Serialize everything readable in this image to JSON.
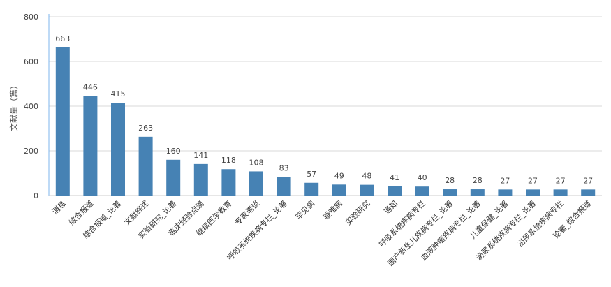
{
  "chart_data": {
    "type": "bar",
    "title": "",
    "xlabel": "",
    "ylabel": "文献量（篇）",
    "ylim": [
      0,
      800
    ],
    "yticks": [
      0,
      200,
      400,
      600,
      800
    ],
    "grid": true,
    "bar_color": "#4682b4",
    "categories": [
      "消息",
      "综合报道",
      "综合报道_论著",
      "文献综述",
      "实验研究_论著",
      "临床经验点滴",
      "继续医学教育",
      "专家笔谈",
      "呼吸系统疾病专栏_论著",
      "罕见病",
      "疑难病",
      "实验研究",
      "通知",
      "呼吸系统疾病专栏",
      "国产新生儿疾病专栏_论著",
      "血液肿瘤疾病专栏_论著",
      "儿童保健_论著",
      "泌尿系统疾病专栏_论著",
      "泌尿系统疾病专栏",
      "论著_综合报道"
    ],
    "values": [
      663,
      446,
      415,
      263,
      160,
      141,
      118,
      108,
      83,
      57,
      49,
      48,
      41,
      40,
      28,
      28,
      27,
      27,
      27,
      27
    ]
  }
}
